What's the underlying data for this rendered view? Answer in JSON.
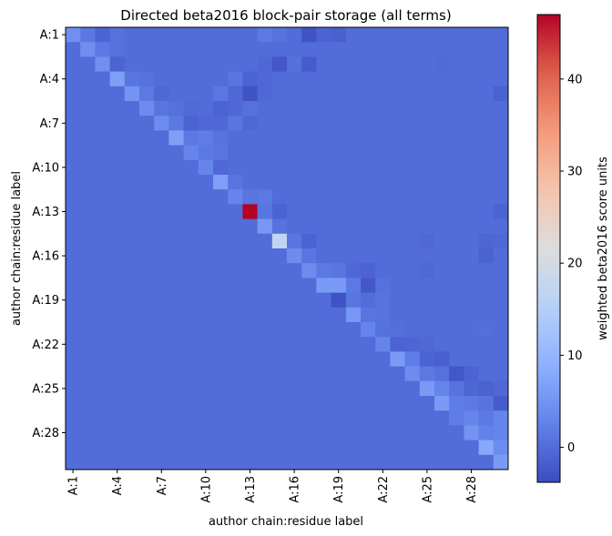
{
  "chart_data": {
    "type": "heatmap",
    "title": "Directed beta2016 block-pair storage (all terms)",
    "xlabel": "author chain:residue label",
    "ylabel": "author chain:residue label",
    "colorbar_label": "weighted beta2016 score units",
    "colormap": "coolwarm",
    "vmin": -3.8,
    "vmax": 47,
    "n": 30,
    "labels": [
      "A:1",
      "A:2",
      "A:3",
      "A:4",
      "A:5",
      "A:6",
      "A:7",
      "A:8",
      "A:9",
      "A:10",
      "A:11",
      "A:12",
      "A:13",
      "A:14",
      "A:15",
      "A:16",
      "A:17",
      "A:18",
      "A:19",
      "A:20",
      "A:21",
      "A:22",
      "A:23",
      "A:24",
      "A:25",
      "A:26",
      "A:27",
      "A:28",
      "A:29",
      "A:30"
    ],
    "tick_indices": [
      0,
      3,
      6,
      9,
      12,
      15,
      18,
      21,
      24,
      27
    ],
    "tick_labels": [
      "A:1",
      "A:4",
      "A:7",
      "A:10",
      "A:13",
      "A:16",
      "A:19",
      "A:22",
      "A:25",
      "A:28"
    ],
    "colorbar_ticks": [
      0,
      10,
      20,
      30,
      40
    ],
    "background_value": 0,
    "cells": [
      [
        0,
        0,
        4.5
      ],
      [
        0,
        1,
        1.5
      ],
      [
        0,
        2,
        -1
      ],
      [
        0,
        3,
        0.5
      ],
      [
        0,
        13,
        1.5
      ],
      [
        0,
        14,
        0.8
      ],
      [
        0,
        16,
        -3
      ],
      [
        0,
        17,
        -1
      ],
      [
        0,
        18,
        -1.5
      ],
      [
        1,
        1,
        4.5
      ],
      [
        1,
        2,
        1.5
      ],
      [
        1,
        3,
        0.5
      ],
      [
        2,
        2,
        4.5
      ],
      [
        2,
        3,
        -1
      ],
      [
        2,
        13,
        -0.5
      ],
      [
        2,
        14,
        -2.5
      ],
      [
        2,
        15,
        0.5
      ],
      [
        2,
        16,
        -2
      ],
      [
        2,
        25,
        -0.3
      ],
      [
        3,
        3,
        6.5
      ],
      [
        3,
        4,
        1
      ],
      [
        3,
        5,
        0.5
      ],
      [
        3,
        11,
        1
      ],
      [
        3,
        12,
        -1
      ],
      [
        3,
        13,
        -0.5
      ],
      [
        4,
        4,
        5
      ],
      [
        4,
        5,
        1.5
      ],
      [
        4,
        6,
        -0.5
      ],
      [
        4,
        10,
        1.2
      ],
      [
        4,
        11,
        -0.5
      ],
      [
        4,
        12,
        -3
      ],
      [
        4,
        13,
        -0.5
      ],
      [
        4,
        29,
        -1.2
      ],
      [
        5,
        5,
        4
      ],
      [
        5,
        6,
        1
      ],
      [
        5,
        7,
        0.5
      ],
      [
        5,
        8,
        -0.3
      ],
      [
        5,
        10,
        -1
      ],
      [
        5,
        11,
        -0.5
      ],
      [
        5,
        12,
        0.5
      ],
      [
        6,
        6,
        4
      ],
      [
        6,
        7,
        1.5
      ],
      [
        6,
        8,
        -1
      ],
      [
        6,
        9,
        -0.5
      ],
      [
        6,
        10,
        -0.5
      ],
      [
        6,
        11,
        1
      ],
      [
        6,
        12,
        -0.5
      ],
      [
        7,
        7,
        6.5
      ],
      [
        7,
        8,
        1.5
      ],
      [
        7,
        9,
        2
      ],
      [
        7,
        10,
        0.8
      ],
      [
        8,
        8,
        3
      ],
      [
        8,
        9,
        1.5
      ],
      [
        8,
        10,
        1
      ],
      [
        9,
        9,
        3
      ],
      [
        9,
        10,
        -0.5
      ],
      [
        10,
        10,
        6.5
      ],
      [
        10,
        11,
        1
      ],
      [
        11,
        11,
        3
      ],
      [
        11,
        12,
        1
      ],
      [
        11,
        13,
        1.5
      ],
      [
        12,
        12,
        47
      ],
      [
        12,
        13,
        1
      ],
      [
        12,
        14,
        -1
      ],
      [
        12,
        29,
        -1
      ],
      [
        13,
        13,
        5.5
      ],
      [
        13,
        14,
        0.8
      ],
      [
        14,
        14,
        17
      ],
      [
        14,
        15,
        1
      ],
      [
        14,
        16,
        -1
      ],
      [
        14,
        24,
        -0.5
      ],
      [
        14,
        28,
        -0.8
      ],
      [
        14,
        29,
        -0.5
      ],
      [
        15,
        15,
        4
      ],
      [
        15,
        16,
        1
      ],
      [
        15,
        28,
        -1.2
      ],
      [
        16,
        16,
        4
      ],
      [
        16,
        17,
        1.5
      ],
      [
        16,
        18,
        1
      ],
      [
        16,
        19,
        -0.5
      ],
      [
        16,
        20,
        -1
      ],
      [
        16,
        24,
        -0.5
      ],
      [
        17,
        17,
        6
      ],
      [
        17,
        18,
        6
      ],
      [
        17,
        19,
        1.5
      ],
      [
        17,
        20,
        -2.5
      ],
      [
        17,
        21,
        0.5
      ],
      [
        18,
        18,
        -3
      ],
      [
        18,
        19,
        1
      ],
      [
        18,
        21,
        0.8
      ],
      [
        19,
        19,
        5.5
      ],
      [
        19,
        20,
        1
      ],
      [
        19,
        21,
        0.8
      ],
      [
        20,
        20,
        3
      ],
      [
        20,
        21,
        0.5
      ],
      [
        20,
        22,
        0.3
      ],
      [
        20,
        28,
        0.3
      ],
      [
        21,
        21,
        3
      ],
      [
        21,
        22,
        -1
      ],
      [
        21,
        23,
        -0.8
      ],
      [
        21,
        24,
        -0.5
      ],
      [
        22,
        22,
        6
      ],
      [
        22,
        23,
        2
      ],
      [
        22,
        24,
        -1
      ],
      [
        22,
        25,
        -1.5
      ],
      [
        23,
        23,
        4
      ],
      [
        23,
        24,
        1.5
      ],
      [
        23,
        25,
        0.5
      ],
      [
        23,
        26,
        -2.5
      ],
      [
        23,
        27,
        -1
      ],
      [
        24,
        24,
        6
      ],
      [
        24,
        25,
        3
      ],
      [
        24,
        26,
        0.8
      ],
      [
        24,
        27,
        -0.8
      ],
      [
        24,
        28,
        -1.2
      ],
      [
        24,
        29,
        -0.5
      ],
      [
        25,
        25,
        6
      ],
      [
        25,
        26,
        2
      ],
      [
        25,
        27,
        1.5
      ],
      [
        25,
        28,
        0.8
      ],
      [
        25,
        29,
        -2
      ],
      [
        26,
        26,
        2
      ],
      [
        26,
        27,
        3
      ],
      [
        26,
        28,
        1.5
      ],
      [
        26,
        29,
        3
      ],
      [
        27,
        27,
        5
      ],
      [
        27,
        28,
        2.5
      ],
      [
        27,
        29,
        3
      ],
      [
        28,
        28,
        8
      ],
      [
        28,
        29,
        4
      ],
      [
        29,
        29,
        6
      ]
    ]
  }
}
